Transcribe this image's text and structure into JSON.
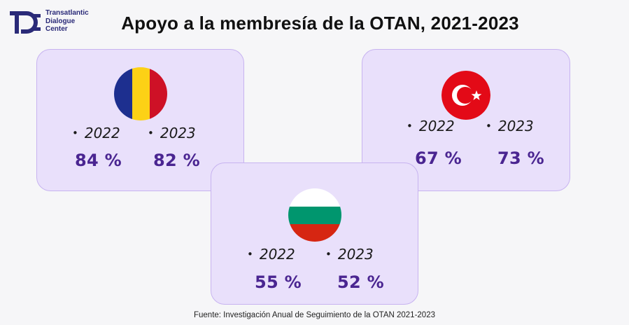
{
  "logo": {
    "lines": [
      "Transatlantic",
      "Dialogue",
      "Center"
    ]
  },
  "title": "Apoyo a la membresía de la OTAN, 2021-2023",
  "footer": "Fuente: Investigación Anual de Seguimiento de la OTAN 2021-2023",
  "colors": {
    "card_bg": "#e9e0fb",
    "card_border": "#c7b3f0",
    "percent_text": "#4a2591",
    "logo": "#2a2a78"
  },
  "chart_data": {
    "type": "table",
    "title": "Apoyo a la membresía de la OTAN, 2021-2023",
    "years": [
      "2022",
      "2023"
    ],
    "unit": "%",
    "rows": [
      {
        "flag_icon": "romania-flag-icon",
        "values": [
          84,
          82
        ],
        "labels": [
          "84 %",
          "82 %"
        ]
      },
      {
        "flag_icon": "turkey-flag-icon",
        "values": [
          67,
          73
        ],
        "labels": [
          "67 %",
          "73 %"
        ]
      },
      {
        "flag_icon": "bulgaria-flag-icon",
        "values": [
          55,
          52
        ],
        "labels": [
          "55 %",
          "52 %"
        ]
      }
    ]
  }
}
